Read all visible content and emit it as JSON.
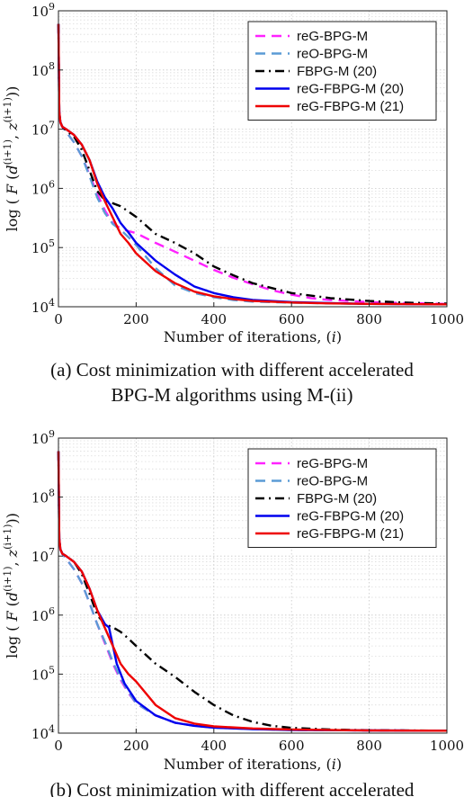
{
  "chart_data": [
    {
      "type": "line",
      "xlabel": "Number of iterations, (i)",
      "ylabel": "log (F (d^(i+1), z^(i+1)))",
      "yscale": "log",
      "xlim": [
        0,
        1000
      ],
      "ylim": [
        10000,
        1000000000
      ],
      "xticks": [
        "0",
        "200",
        "400",
        "600",
        "800",
        "1000"
      ],
      "yticks": [
        "10^4",
        "10^5",
        "10^6",
        "10^7",
        "10^8",
        "10^9"
      ],
      "grid": true,
      "legend_position": "top-right",
      "caption": "(a) Cost minimization with different accelerated BPG-M algorithms using M-(ii)",
      "caption_lines": [
        "(a) Cost minimization with different accelerated",
        "BPG-M algorithms using M-(ii)"
      ],
      "series": [
        {
          "name": "reG-BPG-M",
          "color": "#ff22ff",
          "dash": "dash",
          "x": [
            0,
            2,
            5,
            10,
            20,
            40,
            60,
            80,
            100,
            120,
            140,
            160,
            180,
            200,
            250,
            300,
            350,
            400,
            450,
            500,
            550,
            600,
            650,
            700,
            750,
            800,
            900,
            1000
          ],
          "y": [
            600000000,
            20000000,
            13000000,
            11000000,
            9000000,
            6000000,
            3500000,
            1700000,
            800000,
            420000,
            260000,
            210000,
            190000,
            175000,
            120000,
            85000,
            60000,
            42000,
            31000,
            24000,
            19000,
            16000,
            14000,
            13000,
            12500,
            12000,
            11500,
            11200
          ]
        },
        {
          "name": "reO-BPG-M",
          "color": "#5b9bd5",
          "dash": "dash",
          "x": [
            0,
            2,
            5,
            10,
            20,
            40,
            60,
            80,
            100,
            120,
            140,
            160,
            180,
            200,
            250,
            300,
            350,
            400,
            450,
            500,
            600,
            700,
            800,
            1000
          ],
          "y": [
            600000000,
            20000000,
            13000000,
            11000000,
            9000000,
            6000000,
            3500000,
            1600000,
            700000,
            380000,
            250000,
            200000,
            150000,
            110000,
            45000,
            23000,
            17000,
            14500,
            13000,
            12200,
            11700,
            11400,
            11200,
            11000
          ]
        },
        {
          "name": "FBPG-M (20)",
          "color": "#000000",
          "dash": "dashdot",
          "x": [
            0,
            2,
            5,
            10,
            20,
            40,
            60,
            80,
            100,
            120,
            140,
            160,
            200,
            250,
            300,
            350,
            400,
            450,
            500,
            600,
            700,
            800,
            900,
            1000
          ],
          "y": [
            600000000,
            20000000,
            13000000,
            11000000,
            9500000,
            7500000,
            4500000,
            2000000,
            900000,
            620000,
            560000,
            500000,
            330000,
            170000,
            120000,
            80000,
            48000,
            34000,
            25000,
            17000,
            14000,
            12500,
            11700,
            11300
          ]
        },
        {
          "name": "reG-FBPG-M (20)",
          "color": "#0000ee",
          "dash": "solid",
          "x": [
            0,
            2,
            5,
            10,
            20,
            40,
            60,
            80,
            100,
            120,
            140,
            160,
            180,
            200,
            250,
            300,
            350,
            400,
            450,
            500,
            600,
            700,
            800,
            1000
          ],
          "y": [
            600000000,
            20000000,
            13000000,
            11000000,
            10000000,
            8000000,
            5500000,
            3000000,
            1300000,
            700000,
            450000,
            260000,
            180000,
            120000,
            60000,
            35000,
            22000,
            17000,
            14500,
            13000,
            12000,
            11500,
            11200,
            11000
          ]
        },
        {
          "name": "reG-FBPG-M (21)",
          "color": "#ee0000",
          "dash": "solid",
          "x": [
            0,
            2,
            5,
            10,
            20,
            40,
            60,
            80,
            100,
            120,
            140,
            160,
            180,
            200,
            250,
            300,
            350,
            400,
            450,
            500,
            600,
            700,
            800,
            1000
          ],
          "y": [
            600000000,
            20000000,
            13000000,
            11000000,
            10000000,
            8000000,
            5500000,
            3000000,
            1200000,
            600000,
            320000,
            170000,
            120000,
            80000,
            40000,
            25000,
            18000,
            15000,
            13500,
            12500,
            11800,
            11400,
            11200,
            11000
          ]
        }
      ]
    },
    {
      "type": "line",
      "xlabel": "Number of iterations, (i)",
      "ylabel": "log (F (d^(i+1), z^(i+1)))",
      "yscale": "log",
      "xlim": [
        0,
        1000
      ],
      "ylim": [
        10000,
        1000000000
      ],
      "xticks": [
        "0",
        "200",
        "400",
        "600",
        "800",
        "1000"
      ],
      "yticks": [
        "10^4",
        "10^5",
        "10^6",
        "10^7",
        "10^8",
        "10^9"
      ],
      "grid": true,
      "legend_position": "top-right",
      "caption": "(b) Cost minimization with different accelerated",
      "caption_lines": [
        "(b) Cost minimization with different accelerated"
      ],
      "series": [
        {
          "name": "reG-BPG-M",
          "color": "#ff22ff",
          "dash": "dash",
          "x": [
            0,
            2,
            5,
            10,
            20,
            40,
            60,
            80,
            100,
            120,
            140,
            160,
            180,
            200,
            250,
            300,
            350,
            400,
            500,
            600,
            800,
            1000
          ],
          "y": [
            600000000,
            20000000,
            13000000,
            11000000,
            9000000,
            6000000,
            3500000,
            1600000,
            700000,
            330000,
            150000,
            80000,
            48000,
            32000,
            20000,
            15000,
            13500,
            12500,
            11800,
            11400,
            11100,
            11000
          ]
        },
        {
          "name": "reO-BPG-M",
          "color": "#5b9bd5",
          "dash": "dash",
          "x": [
            0,
            2,
            5,
            10,
            20,
            40,
            60,
            80,
            100,
            120,
            140,
            160,
            180,
            200,
            250,
            300,
            350,
            400,
            500,
            600,
            800,
            1000
          ],
          "y": [
            600000000,
            20000000,
            13000000,
            11000000,
            9000000,
            6000000,
            3500000,
            1600000,
            700000,
            350000,
            160000,
            85000,
            50000,
            32000,
            20000,
            15000,
            13300,
            12400,
            11700,
            11300,
            11100,
            11000
          ]
        },
        {
          "name": "FBPG-M (20)",
          "color": "#000000",
          "dash": "dashdot",
          "x": [
            0,
            2,
            5,
            10,
            20,
            40,
            60,
            80,
            100,
            120,
            140,
            160,
            180,
            200,
            250,
            300,
            350,
            400,
            450,
            500,
            550,
            600,
            700,
            800,
            1000
          ],
          "y": [
            600000000,
            20000000,
            13000000,
            11000000,
            10000000,
            8000000,
            5000000,
            2300000,
            1000000,
            700000,
            620000,
            520000,
            400000,
            300000,
            150000,
            90000,
            50000,
            30000,
            20000,
            15500,
            13300,
            12300,
            11500,
            11200,
            11000
          ]
        },
        {
          "name": "reG-FBPG-M (20)",
          "color": "#0000ee",
          "dash": "solid",
          "x": [
            0,
            2,
            5,
            10,
            20,
            40,
            60,
            80,
            100,
            120,
            130,
            150,
            170,
            200,
            250,
            300,
            350,
            400,
            500,
            600,
            800,
            1000
          ],
          "y": [
            600000000,
            20000000,
            13000000,
            11000000,
            10000000,
            8000000,
            5500000,
            2800000,
            1200000,
            700000,
            620000,
            150000,
            70000,
            35000,
            20000,
            15000,
            13300,
            12400,
            11700,
            11300,
            11100,
            11000
          ]
        },
        {
          "name": "reG-FBPG-M (21)",
          "color": "#ee0000",
          "dash": "solid",
          "x": [
            0,
            2,
            5,
            10,
            20,
            40,
            60,
            80,
            100,
            120,
            140,
            160,
            180,
            200,
            250,
            300,
            350,
            400,
            500,
            600,
            800,
            1000
          ],
          "y": [
            600000000,
            20000000,
            13000000,
            11000000,
            10000000,
            8000000,
            5500000,
            2800000,
            1200000,
            600000,
            300000,
            150000,
            100000,
            75000,
            30000,
            18000,
            14500,
            13000,
            12000,
            11500,
            11100,
            11000
          ]
        }
      ]
    }
  ]
}
